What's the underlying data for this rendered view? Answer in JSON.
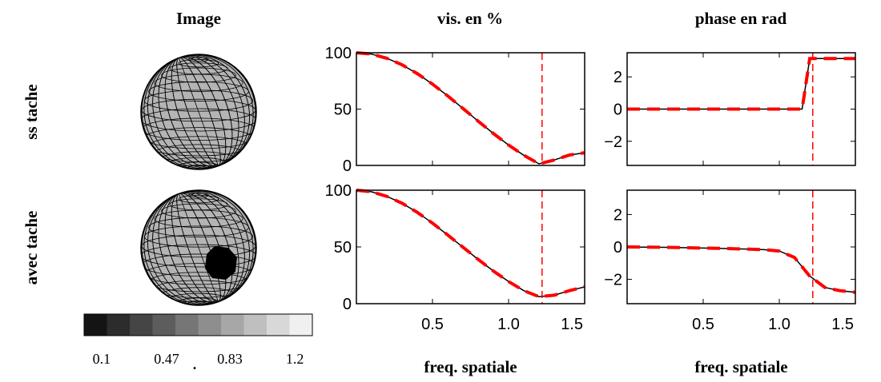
{
  "headers": {
    "image": "Image",
    "vis": "vis. en %",
    "phase": "phase en rad"
  },
  "row_labels": [
    "ss tache",
    "avec tache"
  ],
  "colorbar": {
    "lim": [
      0,
      1.3
    ],
    "ticks": [
      0.1,
      0.47,
      0.83,
      1.2
    ],
    "mark": "."
  },
  "chart_data": [
    {
      "type": "line",
      "x": [
        0,
        0.1,
        0.2,
        0.3,
        0.4,
        0.5,
        0.6,
        0.7,
        0.8,
        0.9,
        1,
        1.1,
        1.2,
        1.3,
        1.4,
        1.5
      ],
      "series": [
        {
          "color": "#000000",
          "values": [
            100,
            98.8,
            95.1,
            89.3,
            81.5,
            72.2,
            61.7,
            50.6,
            39.3,
            28.4,
            18.1,
            9,
            1.4,
            4.8,
            9.2,
            11.3
          ]
        },
        {
          "color": "#ff0000",
          "dash": true,
          "values": [
            100,
            98.8,
            95.1,
            89.3,
            81.5,
            72.2,
            61.7,
            50.6,
            39.3,
            28.4,
            18.1,
            9,
            1.4,
            4.8,
            9.2,
            11.3
          ]
        }
      ],
      "vline": {
        "x": 1.22,
        "color": "#ff0000"
      },
      "xlim": [
        0,
        1.5
      ],
      "xticks": [
        0.5,
        {
          "value": 1,
          "label": "1.0"
        },
        1.5
      ],
      "ylim": [
        0,
        100
      ],
      "yticks": [
        0,
        50,
        100
      ]
    },
    {
      "type": "line",
      "x": [
        0,
        0.1,
        0.2,
        0.3,
        0.4,
        0.5,
        0.6,
        0.7,
        0.8,
        0.9,
        1,
        1.1,
        1.15,
        1.2,
        1.3,
        1.4,
        1.5
      ],
      "series": [
        {
          "color": "#000000",
          "values": [
            0,
            0,
            0,
            0,
            0,
            0,
            0,
            0,
            0,
            0,
            0,
            0,
            0,
            3.14,
            3.14,
            3.14,
            3.14
          ]
        },
        {
          "color": "#ff0000",
          "dash": true,
          "values": [
            0,
            0,
            0,
            0,
            0,
            0,
            0,
            0,
            0,
            0,
            0,
            0,
            0,
            3.14,
            3.14,
            3.14,
            3.14
          ]
        }
      ],
      "vline": {
        "x": 1.22,
        "color": "#ff0000"
      },
      "xlim": [
        0,
        1.5
      ],
      "xticks": [
        0.5,
        {
          "value": 1,
          "label": "1.0"
        },
        1.5
      ],
      "ylim": [
        -3.5,
        3.5
      ],
      "yticks": [
        {
          "value": -2,
          "label": "−2"
        },
        0,
        2
      ]
    },
    {
      "type": "line",
      "x": [
        0,
        0.1,
        0.2,
        0.3,
        0.4,
        0.5,
        0.6,
        0.7,
        0.8,
        0.9,
        1,
        1.1,
        1.2,
        1.3,
        1.4,
        1.5
      ],
      "series": [
        {
          "color": "#000000",
          "values": [
            100,
            98.6,
            94.6,
            88.5,
            80.5,
            71,
            60.5,
            49.8,
            39,
            28.8,
            19.5,
            11.5,
            6.2,
            7.5,
            11.5,
            14.8
          ]
        },
        {
          "color": "#ff0000",
          "dash": true,
          "values": [
            100,
            98.6,
            94.6,
            88.5,
            80.5,
            71,
            60.5,
            49.8,
            39,
            28.8,
            19.5,
            11.5,
            6.2,
            7.5,
            11.5,
            14.8
          ]
        }
      ],
      "vline": {
        "x": 1.22,
        "color": "#ff0000"
      },
      "xlim": [
        0,
        1.5
      ],
      "xticks": [
        0.5,
        {
          "value": 1,
          "label": "1.0"
        },
        1.5
      ],
      "ylim": [
        0,
        100
      ],
      "yticks": [
        0,
        50,
        100
      ],
      "xlabel": "freq. spatiale"
    },
    {
      "type": "line",
      "x": [
        0,
        0.1,
        0.2,
        0.3,
        0.4,
        0.5,
        0.6,
        0.7,
        0.8,
        0.9,
        1,
        1.1,
        1.2,
        1.3,
        1.4,
        1.5
      ],
      "series": [
        {
          "color": "#000000",
          "values": [
            0,
            -0.01,
            -0.02,
            -0.03,
            -0.05,
            -0.07,
            -0.09,
            -0.11,
            -0.14,
            -0.17,
            -0.25,
            -0.65,
            -1.8,
            -2.5,
            -2.7,
            -2.8
          ]
        },
        {
          "color": "#ff0000",
          "dash": true,
          "values": [
            0,
            -0.01,
            -0.02,
            -0.03,
            -0.05,
            -0.07,
            -0.09,
            -0.11,
            -0.14,
            -0.17,
            -0.25,
            -0.65,
            -1.8,
            -2.5,
            -2.7,
            -2.8
          ]
        }
      ],
      "vline": {
        "x": 1.22,
        "color": "#ff0000"
      },
      "xlim": [
        0,
        1.5
      ],
      "xticks": [
        0.5,
        {
          "value": 1,
          "label": "1.0"
        },
        1.5
      ],
      "ylim": [
        -3.5,
        3.5
      ],
      "yticks": [
        {
          "value": -2,
          "label": "−2"
        },
        0,
        2
      ],
      "xlabel": "freq. spatiale"
    }
  ]
}
